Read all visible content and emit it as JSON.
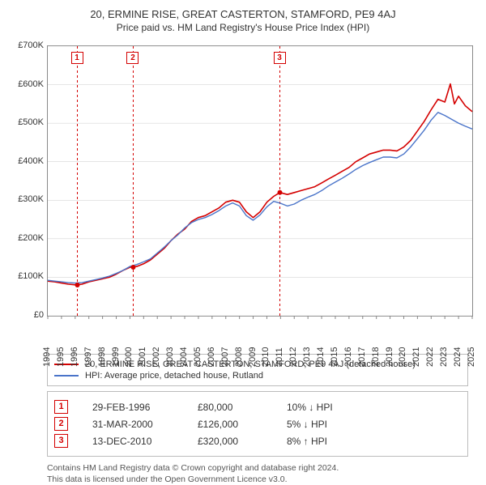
{
  "title1": "20, ERMINE RISE, GREAT CASTERTON, STAMFORD, PE9 4AJ",
  "title2": "Price paid vs. HM Land Registry's House Price Index (HPI)",
  "chart": {
    "type": "line",
    "background_color": "#ffffff",
    "border_color": "#888888",
    "x_years": [
      1994,
      1995,
      1996,
      1997,
      1998,
      1999,
      2000,
      2001,
      2002,
      2003,
      2004,
      2005,
      2006,
      2007,
      2008,
      2009,
      2010,
      2011,
      2012,
      2013,
      2014,
      2015,
      2016,
      2017,
      2018,
      2019,
      2020,
      2021,
      2022,
      2023,
      2024,
      2025
    ],
    "x_min": 1994,
    "x_max": 2025,
    "y_min": 0,
    "y_max": 700000,
    "y_step": 100000,
    "y_tick_labels": [
      "£0",
      "£100K",
      "£200K",
      "£300K",
      "£400K",
      "£500K",
      "£600K",
      "£700K"
    ],
    "series": [
      {
        "name": "20, ERMINE RISE, GREAT CASTERTON, STAMFORD, PE9 4AJ (detached house)",
        "color": "#d40000",
        "width": 1.6,
        "points": [
          [
            1994.0,
            90000
          ],
          [
            1994.5,
            88000
          ],
          [
            1995.0,
            85000
          ],
          [
            1995.5,
            82000
          ],
          [
            1996.1,
            80000
          ],
          [
            1996.5,
            82000
          ],
          [
            1997.0,
            88000
          ],
          [
            1997.5,
            92000
          ],
          [
            1998.0,
            96000
          ],
          [
            1998.5,
            100000
          ],
          [
            1999.0,
            108000
          ],
          [
            1999.5,
            118000
          ],
          [
            2000.0,
            126000
          ],
          [
            2000.5,
            128000
          ],
          [
            2001.0,
            135000
          ],
          [
            2001.5,
            145000
          ],
          [
            2002.0,
            160000
          ],
          [
            2002.5,
            175000
          ],
          [
            2003.0,
            195000
          ],
          [
            2003.5,
            212000
          ],
          [
            2004.0,
            225000
          ],
          [
            2004.5,
            245000
          ],
          [
            2005.0,
            255000
          ],
          [
            2005.5,
            260000
          ],
          [
            2006.0,
            270000
          ],
          [
            2006.5,
            280000
          ],
          [
            2007.0,
            295000
          ],
          [
            2007.5,
            300000
          ],
          [
            2008.0,
            295000
          ],
          [
            2008.5,
            270000
          ],
          [
            2009.0,
            255000
          ],
          [
            2009.5,
            270000
          ],
          [
            2010.0,
            295000
          ],
          [
            2010.5,
            310000
          ],
          [
            2010.95,
            320000
          ],
          [
            2011.5,
            315000
          ],
          [
            2012.0,
            320000
          ],
          [
            2012.5,
            325000
          ],
          [
            2013.0,
            330000
          ],
          [
            2013.5,
            335000
          ],
          [
            2014.0,
            345000
          ],
          [
            2014.5,
            355000
          ],
          [
            2015.0,
            365000
          ],
          [
            2015.5,
            375000
          ],
          [
            2016.0,
            385000
          ],
          [
            2016.5,
            400000
          ],
          [
            2017.0,
            410000
          ],
          [
            2017.5,
            420000
          ],
          [
            2018.0,
            425000
          ],
          [
            2018.5,
            430000
          ],
          [
            2019.0,
            430000
          ],
          [
            2019.5,
            428000
          ],
          [
            2020.0,
            438000
          ],
          [
            2020.5,
            455000
          ],
          [
            2021.0,
            480000
          ],
          [
            2021.5,
            505000
          ],
          [
            2022.0,
            535000
          ],
          [
            2022.5,
            562000
          ],
          [
            2023.0,
            555000
          ],
          [
            2023.4,
            602000
          ],
          [
            2023.7,
            550000
          ],
          [
            2024.0,
            570000
          ],
          [
            2024.5,
            545000
          ],
          [
            2025.0,
            530000
          ]
        ]
      },
      {
        "name": "HPI: Average price, detached house, Rutland",
        "color": "#4a74c9",
        "width": 1.4,
        "points": [
          [
            1994.0,
            92000
          ],
          [
            1994.5,
            90000
          ],
          [
            1995.0,
            88000
          ],
          [
            1995.5,
            86000
          ],
          [
            1996.0,
            85000
          ],
          [
            1996.5,
            86000
          ],
          [
            1997.0,
            90000
          ],
          [
            1997.5,
            94000
          ],
          [
            1998.0,
            98000
          ],
          [
            1998.5,
            103000
          ],
          [
            1999.0,
            110000
          ],
          [
            1999.5,
            118000
          ],
          [
            2000.0,
            128000
          ],
          [
            2000.5,
            133000
          ],
          [
            2001.0,
            140000
          ],
          [
            2001.5,
            148000
          ],
          [
            2002.0,
            163000
          ],
          [
            2002.5,
            178000
          ],
          [
            2003.0,
            195000
          ],
          [
            2003.5,
            210000
          ],
          [
            2004.0,
            228000
          ],
          [
            2004.5,
            242000
          ],
          [
            2005.0,
            250000
          ],
          [
            2005.5,
            255000
          ],
          [
            2006.0,
            263000
          ],
          [
            2006.5,
            273000
          ],
          [
            2007.0,
            285000
          ],
          [
            2007.5,
            293000
          ],
          [
            2008.0,
            285000
          ],
          [
            2008.5,
            260000
          ],
          [
            2009.0,
            248000
          ],
          [
            2009.5,
            262000
          ],
          [
            2010.0,
            283000
          ],
          [
            2010.5,
            297000
          ],
          [
            2011.0,
            292000
          ],
          [
            2011.5,
            285000
          ],
          [
            2012.0,
            290000
          ],
          [
            2012.5,
            300000
          ],
          [
            2013.0,
            308000
          ],
          [
            2013.5,
            315000
          ],
          [
            2014.0,
            325000
          ],
          [
            2014.5,
            337000
          ],
          [
            2015.0,
            347000
          ],
          [
            2015.5,
            357000
          ],
          [
            2016.0,
            368000
          ],
          [
            2016.5,
            380000
          ],
          [
            2017.0,
            390000
          ],
          [
            2017.5,
            398000
          ],
          [
            2018.0,
            405000
          ],
          [
            2018.5,
            412000
          ],
          [
            2019.0,
            412000
          ],
          [
            2019.5,
            410000
          ],
          [
            2020.0,
            420000
          ],
          [
            2020.5,
            438000
          ],
          [
            2021.0,
            460000
          ],
          [
            2021.5,
            482000
          ],
          [
            2022.0,
            508000
          ],
          [
            2022.5,
            528000
          ],
          [
            2023.0,
            520000
          ],
          [
            2023.5,
            510000
          ],
          [
            2024.0,
            500000
          ],
          [
            2024.5,
            492000
          ],
          [
            2025.0,
            485000
          ]
        ]
      }
    ],
    "markers": [
      {
        "n": "1",
        "year": 1996.16,
        "color": "#d40000"
      },
      {
        "n": "2",
        "year": 2000.24,
        "color": "#d40000"
      },
      {
        "n": "3",
        "year": 2010.95,
        "color": "#d40000"
      }
    ]
  },
  "legend": [
    {
      "color": "#d40000",
      "label": "20, ERMINE RISE, GREAT CASTERTON, STAMFORD, PE9 4AJ (detached house)"
    },
    {
      "color": "#4a74c9",
      "label": "HPI: Average price, detached house, Rutland"
    }
  ],
  "transactions": [
    {
      "n": "1",
      "date": "29-FEB-1996",
      "price": "£80,000",
      "pct": "10% ↓ HPI",
      "color": "#d40000"
    },
    {
      "n": "2",
      "date": "31-MAR-2000",
      "price": "£126,000",
      "pct": "5% ↓ HPI",
      "color": "#d40000"
    },
    {
      "n": "3",
      "date": "13-DEC-2010",
      "price": "£320,000",
      "pct": "8% ↑ HPI",
      "color": "#d40000"
    }
  ],
  "notes_line1": "Contains HM Land Registry data © Crown copyright and database right 2024.",
  "notes_line2": "This data is licensed under the Open Government Licence v3.0."
}
